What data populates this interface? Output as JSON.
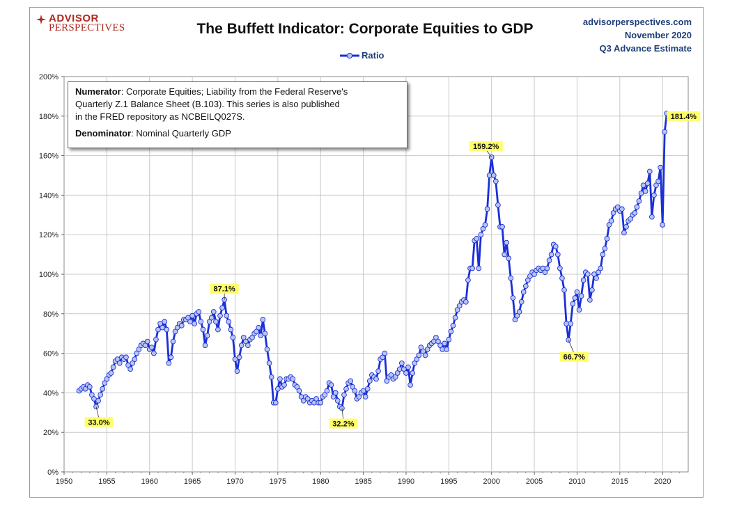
{
  "header": {
    "logo_line1": "ADVISOR",
    "logo_line2": "PERSPECTIVES",
    "title": "The Buffett Indicator: Corporate Equities to GDP",
    "site": "advisorperspectives.com",
    "date": "November 2020",
    "estimate": "Q3 Advance Estimate"
  },
  "legend": {
    "label": "Ratio"
  },
  "notes": {
    "numerator_label": "Numerator",
    "numerator_line1": ": Corporate Equities; Liability from the Federal Reserve's",
    "numerator_line2": "Quarterly Z.1 Balance Sheet (B.103). This series is also published",
    "numerator_line3": "in the FRED repository  as NCBEILQ027S.",
    "denominator_label": "Denominator",
    "denominator_text": ": Nominal Quarterly GDP"
  },
  "colors": {
    "series": "#1a2fd8",
    "marker_fill": "#b9c4f2",
    "callout": "#ffff66",
    "grid": "#c8c8c8",
    "header_text": "#1f3e7a",
    "logo": "#b0281e"
  },
  "chart_data": {
    "type": "line",
    "x_ticks": [
      1950,
      1955,
      1960,
      1965,
      1970,
      1975,
      1980,
      1985,
      1990,
      1995,
      2000,
      2005,
      2010,
      2015,
      2020
    ],
    "y_ticks": [
      "0%",
      "20%",
      "40%",
      "60%",
      "80%",
      "100%",
      "120%",
      "140%",
      "160%",
      "180%",
      "200%"
    ],
    "xlim": [
      1950,
      2023
    ],
    "ylim": [
      0,
      200
    ],
    "grid": true,
    "legend_position": "top-center",
    "series": [
      {
        "name": "Ratio",
        "points": [
          [
            1951.75,
            41
          ],
          [
            1952.0,
            42
          ],
          [
            1952.25,
            43
          ],
          [
            1952.5,
            42
          ],
          [
            1952.75,
            44
          ],
          [
            1953.0,
            43
          ],
          [
            1953.25,
            39
          ],
          [
            1953.5,
            37
          ],
          [
            1953.75,
            33
          ],
          [
            1954.0,
            36
          ],
          [
            1954.25,
            39
          ],
          [
            1954.5,
            42
          ],
          [
            1954.75,
            45
          ],
          [
            1955.0,
            47
          ],
          [
            1955.25,
            49
          ],
          [
            1955.5,
            50
          ],
          [
            1955.75,
            53
          ],
          [
            1956.0,
            56
          ],
          [
            1956.25,
            57
          ],
          [
            1956.5,
            55
          ],
          [
            1956.75,
            58
          ],
          [
            1957.0,
            57
          ],
          [
            1957.25,
            58
          ],
          [
            1957.5,
            54
          ],
          [
            1957.75,
            52
          ],
          [
            1958.0,
            55
          ],
          [
            1958.25,
            57
          ],
          [
            1958.5,
            60
          ],
          [
            1958.75,
            62
          ],
          [
            1959.0,
            64
          ],
          [
            1959.25,
            65
          ],
          [
            1959.5,
            64
          ],
          [
            1959.75,
            66
          ],
          [
            1960.0,
            62
          ],
          [
            1960.25,
            63
          ],
          [
            1960.5,
            60
          ],
          [
            1960.75,
            67
          ],
          [
            1961.0,
            72
          ],
          [
            1961.25,
            75
          ],
          [
            1961.5,
            73
          ],
          [
            1961.75,
            76
          ],
          [
            1962.0,
            72
          ],
          [
            1962.25,
            55
          ],
          [
            1962.5,
            58
          ],
          [
            1962.75,
            66
          ],
          [
            1963.0,
            71
          ],
          [
            1963.25,
            73
          ],
          [
            1963.5,
            75
          ],
          [
            1963.75,
            74
          ],
          [
            1964.0,
            77
          ],
          [
            1964.25,
            77
          ],
          [
            1964.5,
            78
          ],
          [
            1964.75,
            76
          ],
          [
            1965.0,
            79
          ],
          [
            1965.25,
            75
          ],
          [
            1965.5,
            80
          ],
          [
            1965.75,
            81
          ],
          [
            1966.0,
            76
          ],
          [
            1966.25,
            72
          ],
          [
            1966.5,
            64
          ],
          [
            1966.75,
            69
          ],
          [
            1967.0,
            76
          ],
          [
            1967.25,
            78
          ],
          [
            1967.5,
            81
          ],
          [
            1967.75,
            76
          ],
          [
            1968.0,
            72
          ],
          [
            1968.25,
            79
          ],
          [
            1968.5,
            83
          ],
          [
            1968.75,
            87.1
          ],
          [
            1969.0,
            79
          ],
          [
            1969.25,
            76
          ],
          [
            1969.5,
            72
          ],
          [
            1969.75,
            68
          ],
          [
            1970.0,
            57
          ],
          [
            1970.25,
            51
          ],
          [
            1970.5,
            58
          ],
          [
            1970.75,
            64
          ],
          [
            1971.0,
            68
          ],
          [
            1971.25,
            66
          ],
          [
            1971.5,
            64
          ],
          [
            1971.75,
            67
          ],
          [
            1972.0,
            68
          ],
          [
            1972.25,
            70
          ],
          [
            1972.5,
            71
          ],
          [
            1972.75,
            73
          ],
          [
            1973.0,
            69
          ],
          [
            1973.25,
            77
          ],
          [
            1973.5,
            70
          ],
          [
            1973.75,
            62
          ],
          [
            1974.0,
            55
          ],
          [
            1974.25,
            48
          ],
          [
            1974.5,
            35
          ],
          [
            1974.75,
            35
          ],
          [
            1975.0,
            42
          ],
          [
            1975.25,
            47
          ],
          [
            1975.5,
            43
          ],
          [
            1975.75,
            44
          ],
          [
            1976.0,
            47
          ],
          [
            1976.25,
            47
          ],
          [
            1976.5,
            48
          ],
          [
            1976.75,
            47
          ],
          [
            1977.0,
            44
          ],
          [
            1977.25,
            43
          ],
          [
            1977.5,
            41
          ],
          [
            1977.75,
            38
          ],
          [
            1978.0,
            36
          ],
          [
            1978.25,
            38
          ],
          [
            1978.5,
            37
          ],
          [
            1978.75,
            35
          ],
          [
            1979.0,
            36
          ],
          [
            1979.25,
            35
          ],
          [
            1979.5,
            37
          ],
          [
            1979.75,
            35
          ],
          [
            1980.0,
            35
          ],
          [
            1980.25,
            38
          ],
          [
            1980.5,
            39
          ],
          [
            1980.75,
            41
          ],
          [
            1981.0,
            45
          ],
          [
            1981.25,
            44
          ],
          [
            1981.5,
            38
          ],
          [
            1981.75,
            40
          ],
          [
            1982.0,
            36
          ],
          [
            1982.25,
            33
          ],
          [
            1982.5,
            32.2
          ],
          [
            1982.75,
            39
          ],
          [
            1983.0,
            42
          ],
          [
            1983.25,
            45
          ],
          [
            1983.5,
            46
          ],
          [
            1983.75,
            43
          ],
          [
            1984.0,
            41
          ],
          [
            1984.25,
            37
          ],
          [
            1984.5,
            38
          ],
          [
            1984.75,
            40
          ],
          [
            1985.0,
            41
          ],
          [
            1985.25,
            38
          ],
          [
            1985.5,
            42
          ],
          [
            1985.75,
            46
          ],
          [
            1986.0,
            49
          ],
          [
            1986.25,
            48
          ],
          [
            1986.5,
            47
          ],
          [
            1986.75,
            51
          ],
          [
            1987.0,
            57
          ],
          [
            1987.25,
            58
          ],
          [
            1987.5,
            60
          ],
          [
            1987.75,
            46
          ],
          [
            1988.0,
            48
          ],
          [
            1988.25,
            49
          ],
          [
            1988.5,
            47
          ],
          [
            1988.75,
            48
          ],
          [
            1989.0,
            50
          ],
          [
            1989.25,
            52
          ],
          [
            1989.5,
            55
          ],
          [
            1989.75,
            52
          ],
          [
            1990.0,
            50
          ],
          [
            1990.25,
            53
          ],
          [
            1990.5,
            44
          ],
          [
            1990.75,
            50
          ],
          [
            1991.0,
            55
          ],
          [
            1991.25,
            57
          ],
          [
            1991.5,
            59
          ],
          [
            1991.75,
            63
          ],
          [
            1992.0,
            61
          ],
          [
            1992.25,
            59
          ],
          [
            1992.5,
            62
          ],
          [
            1992.75,
            64
          ],
          [
            1993.0,
            65
          ],
          [
            1993.25,
            66
          ],
          [
            1993.5,
            68
          ],
          [
            1993.75,
            66
          ],
          [
            1994.0,
            64
          ],
          [
            1994.25,
            62
          ],
          [
            1994.5,
            65
          ],
          [
            1994.75,
            62
          ],
          [
            1995.0,
            67
          ],
          [
            1995.25,
            71
          ],
          [
            1995.5,
            74
          ],
          [
            1995.75,
            78
          ],
          [
            1996.0,
            82
          ],
          [
            1996.25,
            84
          ],
          [
            1996.5,
            86
          ],
          [
            1996.75,
            87
          ],
          [
            1997.0,
            86
          ],
          [
            1997.25,
            97
          ],
          [
            1997.5,
            103
          ],
          [
            1997.75,
            103
          ],
          [
            1998.0,
            117
          ],
          [
            1998.25,
            118
          ],
          [
            1998.5,
            103
          ],
          [
            1998.75,
            120
          ],
          [
            1999.0,
            123
          ],
          [
            1999.25,
            125
          ],
          [
            1999.5,
            133
          ],
          [
            1999.75,
            150
          ],
          [
            2000.0,
            159.2
          ],
          [
            2000.25,
            150
          ],
          [
            2000.5,
            147
          ],
          [
            2000.75,
            135
          ],
          [
            2001.0,
            124
          ],
          [
            2001.25,
            124
          ],
          [
            2001.5,
            110
          ],
          [
            2001.75,
            116
          ],
          [
            2002.0,
            108
          ],
          [
            2002.25,
            98
          ],
          [
            2002.5,
            88
          ],
          [
            2002.75,
            77
          ],
          [
            2003.0,
            79
          ],
          [
            2003.25,
            81
          ],
          [
            2003.5,
            86
          ],
          [
            2003.75,
            91
          ],
          [
            2004.0,
            94
          ],
          [
            2004.25,
            97
          ],
          [
            2004.5,
            99
          ],
          [
            2004.75,
            101
          ],
          [
            2005.0,
            100
          ],
          [
            2005.25,
            102
          ],
          [
            2005.5,
            103
          ],
          [
            2005.75,
            102
          ],
          [
            2006.0,
            103
          ],
          [
            2006.25,
            101
          ],
          [
            2006.5,
            103
          ],
          [
            2006.75,
            107
          ],
          [
            2007.0,
            110
          ],
          [
            2007.25,
            115
          ],
          [
            2007.5,
            114
          ],
          [
            2007.75,
            110
          ],
          [
            2008.0,
            103
          ],
          [
            2008.25,
            98
          ],
          [
            2008.5,
            92
          ],
          [
            2008.75,
            75
          ],
          [
            2009.0,
            66.7
          ],
          [
            2009.25,
            75
          ],
          [
            2009.5,
            85
          ],
          [
            2009.75,
            88
          ],
          [
            2010.0,
            91
          ],
          [
            2010.25,
            82
          ],
          [
            2010.5,
            89
          ],
          [
            2010.75,
            97
          ],
          [
            2011.0,
            101
          ],
          [
            2011.25,
            100
          ],
          [
            2011.5,
            87
          ],
          [
            2011.75,
            92
          ],
          [
            2012.0,
            100
          ],
          [
            2012.25,
            98
          ],
          [
            2012.5,
            101
          ],
          [
            2012.75,
            103
          ],
          [
            2013.0,
            110
          ],
          [
            2013.25,
            113
          ],
          [
            2013.5,
            118
          ],
          [
            2013.75,
            125
          ],
          [
            2014.0,
            127
          ],
          [
            2014.25,
            131
          ],
          [
            2014.5,
            133
          ],
          [
            2014.75,
            134
          ],
          [
            2015.0,
            132
          ],
          [
            2015.25,
            133
          ],
          [
            2015.5,
            121
          ],
          [
            2015.75,
            124
          ],
          [
            2016.0,
            127
          ],
          [
            2016.25,
            128
          ],
          [
            2016.5,
            130
          ],
          [
            2016.75,
            131
          ],
          [
            2017.0,
            134
          ],
          [
            2017.25,
            137
          ],
          [
            2017.5,
            141
          ],
          [
            2017.75,
            145
          ],
          [
            2018.0,
            142
          ],
          [
            2018.25,
            146
          ],
          [
            2018.5,
            152
          ],
          [
            2018.75,
            129
          ],
          [
            2019.0,
            140
          ],
          [
            2019.25,
            145
          ],
          [
            2019.5,
            147
          ],
          [
            2019.75,
            154
          ],
          [
            2020.0,
            125
          ],
          [
            2020.25,
            172
          ],
          [
            2020.5,
            181.4
          ]
        ]
      }
    ],
    "annotations": [
      {
        "label": "33.0%",
        "x": 1953.75,
        "y": 33.0
      },
      {
        "label": "87.1%",
        "x": 1968.75,
        "y": 87.1
      },
      {
        "label": "32.2%",
        "x": 1982.5,
        "y": 32.2
      },
      {
        "label": "159.2%",
        "x": 2000.0,
        "y": 159.2
      },
      {
        "label": "66.7%",
        "x": 2009.0,
        "y": 66.7
      },
      {
        "label": "181.4%",
        "x": 2020.5,
        "y": 181.4
      }
    ]
  }
}
